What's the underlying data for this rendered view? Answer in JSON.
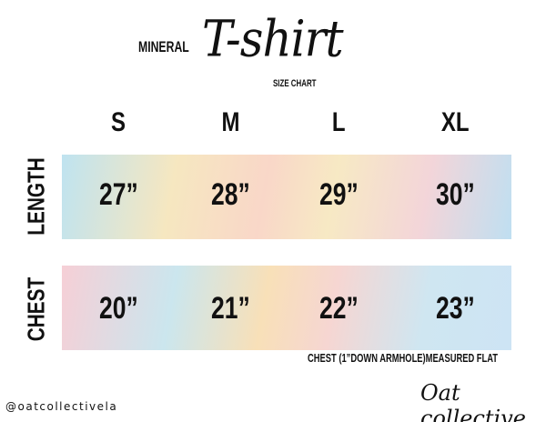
{
  "title": {
    "prefix": "MINERAL",
    "script": "T-shirt",
    "subtitle": "SIZE CHART"
  },
  "sizes": [
    "S",
    "M",
    "L",
    "XL"
  ],
  "rows": [
    {
      "label": "LENGTH",
      "values": [
        "27”",
        "28”",
        "29”",
        "30”"
      ]
    },
    {
      "label": "CHEST",
      "values": [
        "20”",
        "21”",
        "22”",
        "23”"
      ]
    }
  ],
  "note": "CHEST (1”DOWN ARMHOLE)MEASURED FLAT",
  "footer": {
    "handle": "@oatcollectivela",
    "brand": "Oat collective"
  }
}
